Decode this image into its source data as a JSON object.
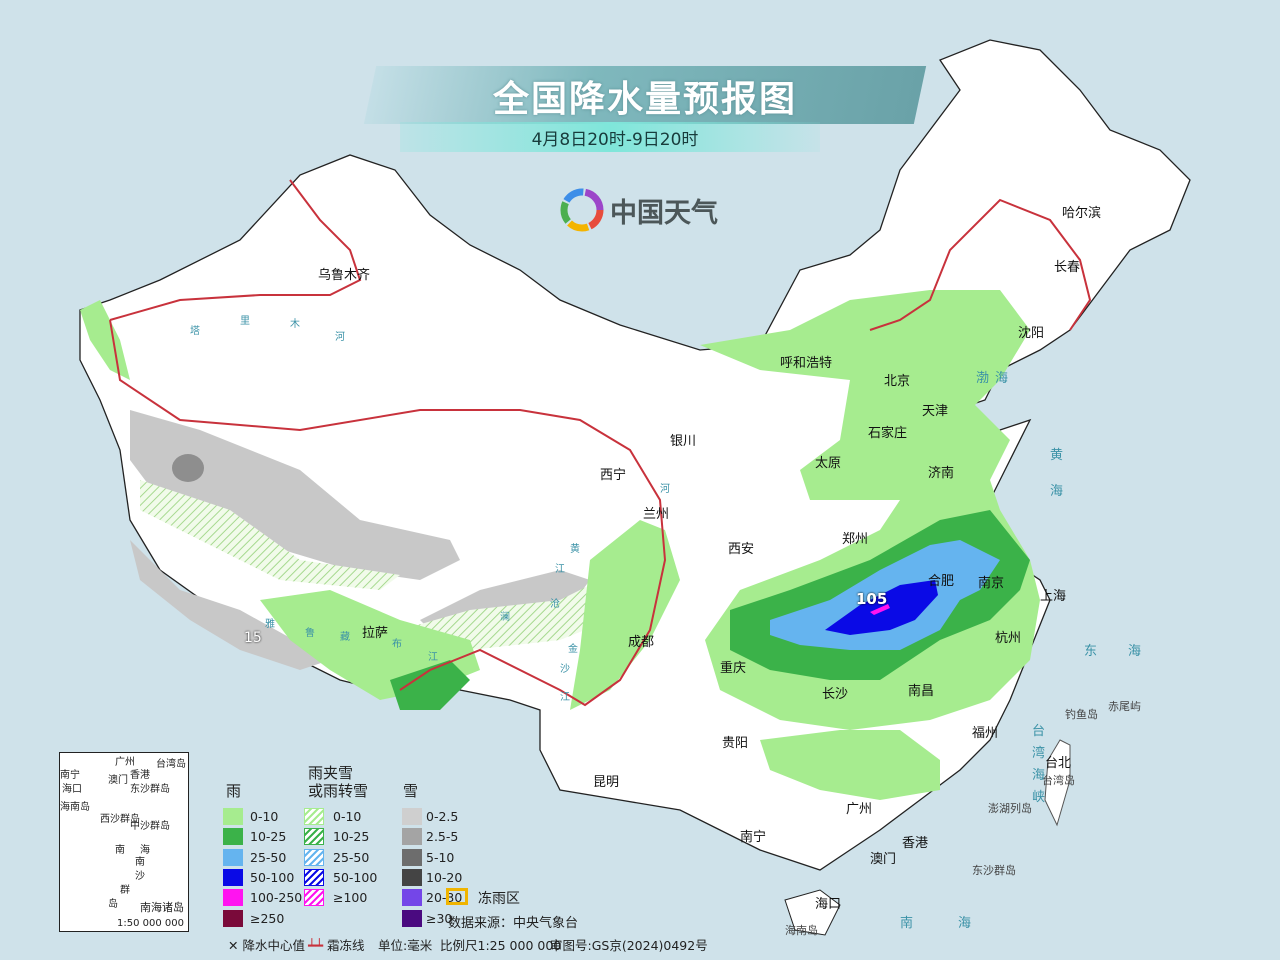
{
  "header": {
    "title": "全国降水量预报图",
    "subtitle": "4月8日20时-9日20时",
    "brand": "中国天气"
  },
  "cities": [
    "乌鲁木齐",
    "哈尔滨",
    "长春",
    "沈阳",
    "呼和浩特",
    "北京",
    "天津",
    "石家庄",
    "太原",
    "济南",
    "银川",
    "西宁",
    "兰州",
    "西安",
    "郑州",
    "合肥",
    "南京",
    "上海",
    "杭州",
    "南昌",
    "长沙",
    "重庆",
    "成都",
    "拉萨",
    "贵阳",
    "昆明",
    "南宁",
    "广州",
    "香港",
    "澳门",
    "海口",
    "福州",
    "台北"
  ],
  "places": [
    "钓鱼岛",
    "赤尾屿",
    "台湾岛",
    "澎湖列岛",
    "东沙群岛",
    "海南岛"
  ],
  "seas": [
    "渤",
    "海",
    "黄",
    "海",
    "东",
    "海",
    "南",
    "海",
    "台",
    "湾",
    "海",
    "峡"
  ],
  "rivers": [
    "塔",
    "里",
    "木",
    "河",
    "雅",
    "鲁",
    "藏",
    "布",
    "江",
    "澜",
    "沧",
    "江",
    "金",
    "沙",
    "江",
    "黄",
    "河"
  ],
  "values": {
    "rain_center": "105",
    "snow_value": "15"
  },
  "legend": {
    "rain": {
      "title": "雨",
      "items": [
        {
          "label": "0-10",
          "color": "#a6ec8f"
        },
        {
          "label": "10-25",
          "color": "#3bb249"
        },
        {
          "label": "25-50",
          "color": "#65b4ef"
        },
        {
          "label": "50-100",
          "color": "#0a0ae6"
        },
        {
          "label": "100-250",
          "color": "#ff14f0"
        },
        {
          "label": "≥250",
          "color": "#7a0a3a"
        }
      ]
    },
    "sleet": {
      "title_line1": "雨夹雪",
      "title_line2": "或雨转雪",
      "items": [
        {
          "label": "0-10",
          "color": "#a6ec8f"
        },
        {
          "label": "10-25",
          "color": "#3bb249"
        },
        {
          "label": "25-50",
          "color": "#65b4ef"
        },
        {
          "label": "50-100",
          "color": "#0a0ae6"
        },
        {
          "label": "≥100",
          "color": "#ff14f0"
        }
      ]
    },
    "snow": {
      "title": "雪",
      "items": [
        {
          "label": "0-2.5",
          "color": "#cfcfcf"
        },
        {
          "label": "2.5-5",
          "color": "#a4a4a4"
        },
        {
          "label": "5-10",
          "color": "#6d6d6d"
        },
        {
          "label": "10-20",
          "color": "#444444"
        },
        {
          "label": "20-30",
          "color": "#7446e8"
        },
        {
          "label": "≥30",
          "color": "#4a0a80"
        }
      ]
    },
    "freezing_rain": {
      "label": "冻雨区",
      "color": "#f0b400"
    },
    "source": "数据来源：中央气象台",
    "center_value": "降水中心值",
    "frost_line": "霜冻线",
    "unit": "单位:毫米",
    "scale": "比例尺1:25 000 000",
    "approval": "审图号:GS京(2024)0492号"
  },
  "inset": {
    "labels": [
      "广州",
      "香港",
      "澳门",
      "南宁",
      "海口",
      "东沙群岛",
      "海南岛",
      "西沙群岛",
      "中沙群岛",
      "南",
      "海",
      "南",
      "沙",
      "群",
      "岛",
      "台湾岛"
    ],
    "title": "南海诸岛",
    "scale": "1:50 000 000"
  }
}
